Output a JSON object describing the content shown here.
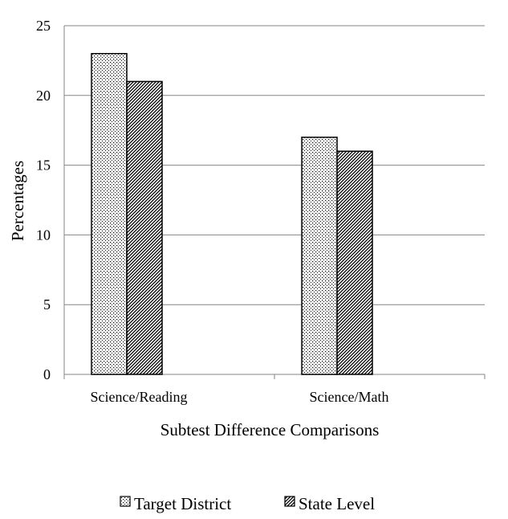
{
  "chart_data": {
    "type": "bar",
    "categories": [
      "Science/Reading",
      "Science/Math"
    ],
    "series": [
      {
        "name": "Target District",
        "values": [
          23,
          17
        ],
        "pattern": "dots"
      },
      {
        "name": "State Level",
        "values": [
          21,
          16
        ],
        "pattern": "hatch"
      }
    ],
    "xlabel": "Subtest Difference Comparisons",
    "ylabel": "Percentages",
    "ylim": [
      0,
      25
    ],
    "yticks": [
      0,
      5,
      10,
      15,
      20,
      25
    ],
    "grid": true,
    "legend_position": "bottom"
  }
}
